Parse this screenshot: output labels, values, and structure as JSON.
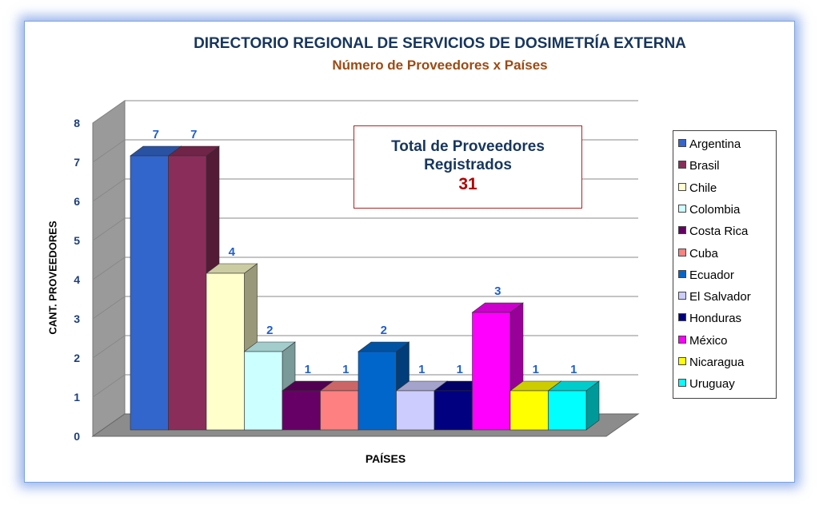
{
  "chart_data": {
    "type": "bar",
    "title": "DIRECTORIO REGIONAL DE SERVICIOS DE DOSIMETRÍA EXTERNA",
    "subtitle": "Número de Proveedores x Países",
    "xlabel": "PAÍSES",
    "ylabel": "CANT. PROVEEDORES",
    "ylim": [
      0,
      8
    ],
    "yticks": [
      "0",
      "1",
      "2",
      "3",
      "4",
      "5",
      "6",
      "7",
      "8"
    ],
    "grid": true,
    "legend_position": "right",
    "categories": [
      "Argentina",
      "Brasil",
      "Chile",
      "Colombia",
      "Costa Rica",
      "Cuba",
      "Ecuador",
      "El Salvador",
      "Honduras",
      "México",
      "Nicaragua",
      "Uruguay"
    ],
    "values": [
      7,
      7,
      4,
      2,
      1,
      1,
      2,
      1,
      1,
      3,
      1,
      1
    ],
    "data_labels": [
      "7",
      "7",
      "4",
      "2",
      "1",
      "1",
      "2",
      "1",
      "1",
      "3",
      "1",
      "1"
    ],
    "colors": [
      "#3366cc",
      "#8b2d5a",
      "#ffffcc",
      "#ccffff",
      "#660066",
      "#ff8080",
      "#0066cc",
      "#ccccff",
      "#000080",
      "#ff00ff",
      "#ffff00",
      "#00ffff"
    ],
    "annotation": {
      "line1": "Total de Proveedores",
      "line2": "Registrados",
      "value": "31"
    }
  }
}
